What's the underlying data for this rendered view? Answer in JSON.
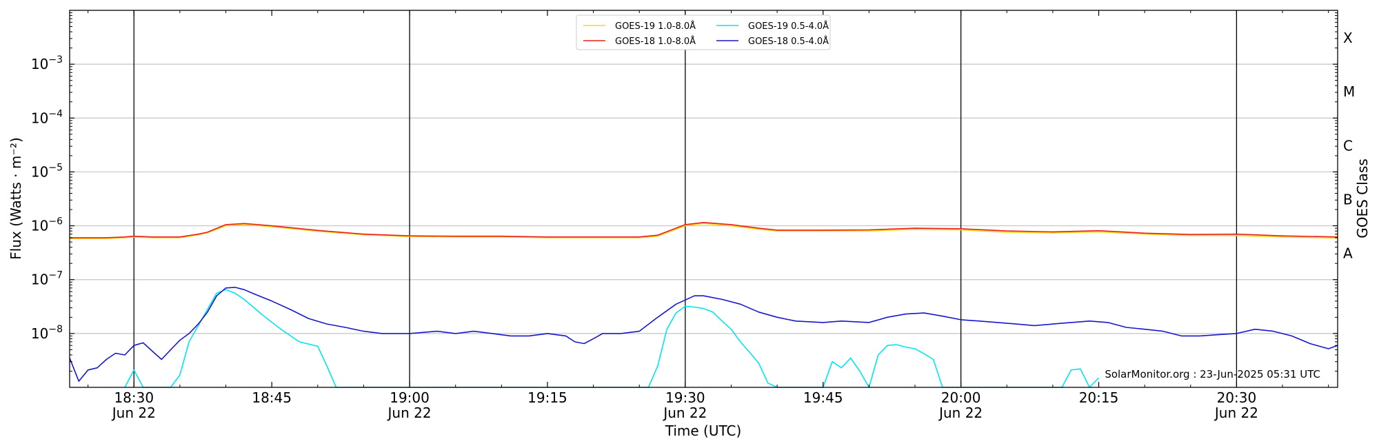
{
  "chart_data": {
    "type": "line",
    "title": "",
    "xlabel": "Time (UTC)",
    "ylabel": "Flux (Watts · m⁻²)",
    "right_ylabel": "GOES Class",
    "yscale": "log",
    "ylim": [
      1e-09,
      0.01
    ],
    "xlim": [
      "2025-06-22 18:23",
      "2025-06-22 20:41"
    ],
    "grid": "horizontal",
    "legend_position": "top-center",
    "x_tick_labels": [
      {
        "time": "18:30",
        "line1": "18:30",
        "line2": "Jun 22"
      },
      {
        "time": "18:45",
        "line1": "18:45",
        "line2": ""
      },
      {
        "time": "19:00",
        "line1": "19:00",
        "line2": "Jun 22"
      },
      {
        "time": "19:15",
        "line1": "19:15",
        "line2": ""
      },
      {
        "time": "19:30",
        "line1": "19:30",
        "line2": "Jun 22"
      },
      {
        "time": "19:45",
        "line1": "19:45",
        "line2": ""
      },
      {
        "time": "20:00",
        "line1": "20:00",
        "line2": "Jun 22"
      },
      {
        "time": "20:15",
        "line1": "20:15",
        "line2": ""
      },
      {
        "time": "20:30",
        "line1": "20:30",
        "line2": "Jun 22"
      }
    ],
    "vertical_marker_times": [
      "18:30",
      "19:00",
      "19:30",
      "20:00",
      "20:30"
    ],
    "y_ticks": [
      {
        "value": 1e-08,
        "base": "10",
        "exp": "−8"
      },
      {
        "value": 1e-07,
        "base": "10",
        "exp": "−7"
      },
      {
        "value": 1e-06,
        "base": "10",
        "exp": "−6"
      },
      {
        "value": 1e-05,
        "base": "10",
        "exp": "−5"
      },
      {
        "value": 0.0001,
        "base": "10",
        "exp": "−4"
      },
      {
        "value": 0.001,
        "base": "10",
        "exp": "−3"
      }
    ],
    "goes_classes": [
      {
        "label": "A",
        "value": 1e-07
      },
      {
        "label": "B",
        "value": 1e-06
      },
      {
        "label": "C",
        "value": 1e-05
      },
      {
        "label": "M",
        "value": 0.0001
      },
      {
        "label": "X",
        "value": 0.001
      }
    ],
    "series": [
      {
        "name": "GOES-19 1.0-8.0Å",
        "color": "#ffd21a",
        "x": [
          "18:23",
          "18:27",
          "18:29",
          "18:30",
          "18:32",
          "18:35",
          "18:37",
          "18:38",
          "18:40",
          "18:42",
          "18:45",
          "18:50",
          "18:55",
          "19:00",
          "19:05",
          "19:10",
          "19:15",
          "19:20",
          "19:25",
          "19:27",
          "19:30",
          "19:32",
          "19:35",
          "19:38",
          "19:40",
          "19:45",
          "19:50",
          "19:55",
          "20:00",
          "20:05",
          "20:10",
          "20:15",
          "20:20",
          "20:25",
          "20:30",
          "20:35",
          "20:41"
        ],
        "y": [
          5.8e-07,
          5.8e-07,
          6e-07,
          6.2e-07,
          6e-07,
          6e-07,
          6.8e-07,
          7.4e-07,
          1e-06,
          1.05e-06,
          9.6e-07,
          7.9e-07,
          6.8e-07,
          6.3e-07,
          6.2e-07,
          6.2e-07,
          6e-07,
          6e-07,
          6e-07,
          6.4e-07,
          1e-06,
          1.1e-06,
          1e-06,
          8.6e-07,
          8e-07,
          8e-07,
          8e-07,
          8.6e-07,
          8.4e-07,
          7.6e-07,
          7.4e-07,
          7.7e-07,
          7e-07,
          6.6e-07,
          6.6e-07,
          6.2e-07,
          5.9e-07
        ]
      },
      {
        "name": "GOES-18 1.0-8.0Å",
        "color": "#e8211a",
        "x": [
          "18:23",
          "18:27",
          "18:29",
          "18:30",
          "18:32",
          "18:35",
          "18:37",
          "18:38",
          "18:40",
          "18:42",
          "18:45",
          "18:50",
          "18:55",
          "19:00",
          "19:05",
          "19:10",
          "19:15",
          "19:20",
          "19:25",
          "19:27",
          "19:30",
          "19:32",
          "19:35",
          "19:38",
          "19:40",
          "19:45",
          "19:50",
          "19:55",
          "20:00",
          "20:05",
          "20:10",
          "20:15",
          "20:20",
          "20:25",
          "20:30",
          "20:35",
          "20:41"
        ],
        "y": [
          6e-07,
          6e-07,
          6.2e-07,
          6.4e-07,
          6.2e-07,
          6.2e-07,
          7e-07,
          7.6e-07,
          1.05e-06,
          1.1e-06,
          1e-06,
          8.2e-07,
          7e-07,
          6.5e-07,
          6.4e-07,
          6.4e-07,
          6.2e-07,
          6.2e-07,
          6.2e-07,
          6.7e-07,
          1.05e-06,
          1.15e-06,
          1.05e-06,
          9e-07,
          8.3e-07,
          8.3e-07,
          8.4e-07,
          9e-07,
          8.8e-07,
          8e-07,
          7.7e-07,
          8.1e-07,
          7.3e-07,
          6.9e-07,
          7e-07,
          6.5e-07,
          6.2e-07
        ]
      },
      {
        "name": "GOES-19 0.5-4.0Å",
        "color": "#00e5ee",
        "x": [
          "18:29",
          "18:30",
          "18:31",
          "18:34",
          "18:35",
          "18:36",
          "18:38",
          "18:39",
          "18:40",
          "18:41",
          "18:42",
          "18:44",
          "18:46",
          "18:48",
          "18:50",
          "18:51",
          "18:52",
          "18:53",
          "19:26",
          "19:27",
          "19:28",
          "19:29",
          "19:30",
          "19:31",
          "19:32",
          "19:33",
          "19:34",
          "19:35",
          "19:36",
          "19:37",
          "19:38",
          "19:39",
          "19:40",
          "19:41",
          "19:45",
          "19:46",
          "19:47",
          "19:48",
          "19:49",
          "19:50",
          "19:51",
          "19:52",
          "19:53",
          "19:54",
          "19:55",
          "19:56",
          "19:57",
          "19:58",
          "20:11",
          "20:12",
          "20:13",
          "20:14",
          "20:15"
        ],
        "y": [
          1e-09,
          2.1e-09,
          1e-09,
          1e-09,
          1.7e-09,
          7e-09,
          2.8e-08,
          5.6e-08,
          6.5e-08,
          5.6e-08,
          4.3e-08,
          2.2e-08,
          1.2e-08,
          7e-09,
          5.8e-09,
          2.5e-09,
          1e-09,
          1e-09,
          1e-09,
          2.5e-09,
          1.2e-08,
          2.4e-08,
          3.2e-08,
          3.1e-08,
          2.9e-08,
          2.5e-08,
          1.7e-08,
          1.2e-08,
          7e-09,
          4.5e-09,
          2.8e-09,
          1.2e-09,
          1e-09,
          1e-09,
          1e-09,
          3e-09,
          2.3e-09,
          3.5e-09,
          2e-09,
          1e-09,
          4e-09,
          6e-09,
          6.2e-09,
          5.6e-09,
          5.2e-09,
          4.2e-09,
          3.3e-09,
          1e-09,
          1e-09,
          2.1e-09,
          2.2e-09,
          1e-09,
          1.5e-09
        ]
      },
      {
        "name": "GOES-18 0.5-4.0Å",
        "color": "#1616cc",
        "x": [
          "18:23",
          "18:24",
          "18:25",
          "18:26",
          "18:27",
          "18:28",
          "18:29",
          "18:30",
          "18:31",
          "18:32",
          "18:33",
          "18:34",
          "18:35",
          "18:36",
          "18:37",
          "18:38",
          "18:39",
          "18:40",
          "18:41",
          "18:42",
          "18:43",
          "18:45",
          "18:47",
          "18:49",
          "18:51",
          "18:53",
          "18:55",
          "18:57",
          "19:00",
          "19:03",
          "19:05",
          "19:07",
          "19:09",
          "19:11",
          "19:13",
          "19:15",
          "19:17",
          "19:18",
          "19:19",
          "19:20",
          "19:21",
          "19:23",
          "19:25",
          "19:27",
          "19:29",
          "19:31",
          "19:32",
          "19:34",
          "19:36",
          "19:38",
          "19:40",
          "19:42",
          "19:45",
          "19:47",
          "19:50",
          "19:52",
          "19:54",
          "19:56",
          "19:58",
          "20:00",
          "20:02",
          "20:04",
          "20:06",
          "20:08",
          "20:10",
          "20:12",
          "20:14",
          "20:16",
          "20:18",
          "20:20",
          "20:22",
          "20:24",
          "20:26",
          "20:28",
          "20:30",
          "20:32",
          "20:34",
          "20:36",
          "20:38",
          "20:40",
          "20:41"
        ],
        "y": [
          3.5e-09,
          1.3e-09,
          2.1e-09,
          2.3e-09,
          3.3e-09,
          4.3e-09,
          4e-09,
          6e-09,
          6.7e-09,
          4.7e-09,
          3.3e-09,
          5e-09,
          7.5e-09,
          1e-08,
          1.5e-08,
          2.5e-08,
          5e-08,
          7e-08,
          7.2e-08,
          6.5e-08,
          5.5e-08,
          4e-08,
          2.8e-08,
          1.9e-08,
          1.5e-08,
          1.3e-08,
          1.1e-08,
          1e-08,
          1e-08,
          1.1e-08,
          1e-08,
          1.1e-08,
          1e-08,
          9e-09,
          9e-09,
          1e-08,
          9e-09,
          7e-09,
          6.5e-09,
          8e-09,
          1e-08,
          1e-08,
          1.1e-08,
          2e-08,
          3.5e-08,
          5e-08,
          5e-08,
          4.3e-08,
          3.5e-08,
          2.5e-08,
          2e-08,
          1.7e-08,
          1.6e-08,
          1.7e-08,
          1.6e-08,
          2e-08,
          2.3e-08,
          2.4e-08,
          2.1e-08,
          1.8e-08,
          1.7e-08,
          1.6e-08,
          1.5e-08,
          1.4e-08,
          1.5e-08,
          1.6e-08,
          1.7e-08,
          1.6e-08,
          1.3e-08,
          1.2e-08,
          1.1e-08,
          9e-09,
          9e-09,
          9.5e-09,
          1e-08,
          1.2e-08,
          1.1e-08,
          9e-09,
          6.5e-09,
          5.2e-09,
          6e-09
        ]
      }
    ],
    "annotation": "SolarMonitor.org : 23-Jun-2025 05:31 UTC"
  }
}
